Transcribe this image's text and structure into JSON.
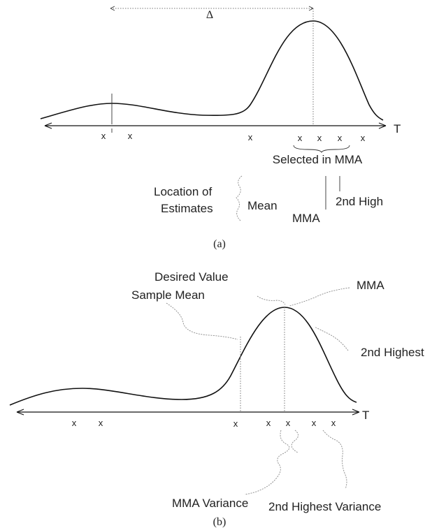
{
  "panel_a": {
    "delta_label": "Δ",
    "axis_label": "T",
    "x_marks": [
      "x",
      "x",
      "x",
      "x",
      "x",
      "x",
      "x"
    ],
    "selected_label": "Selected in MMA",
    "location_label_line1": "Location of",
    "location_label_line2": "Estimates",
    "mean_label": "Mean",
    "mma_label": "MMA",
    "second_high_label": "2nd High",
    "caption": "(a)"
  },
  "panel_b": {
    "desired_value_label": "Desired Value",
    "mma_label": "MMA",
    "sample_mean_label": "Sample Mean",
    "second_highest_label": "2nd Highest",
    "axis_label": "T",
    "x_marks": [
      "x",
      "x",
      "x",
      "x",
      "x",
      "x",
      "x"
    ],
    "mma_variance_label": "MMA Variance",
    "second_highest_variance_label": "2nd Highest Variance",
    "caption": "(b)"
  }
}
